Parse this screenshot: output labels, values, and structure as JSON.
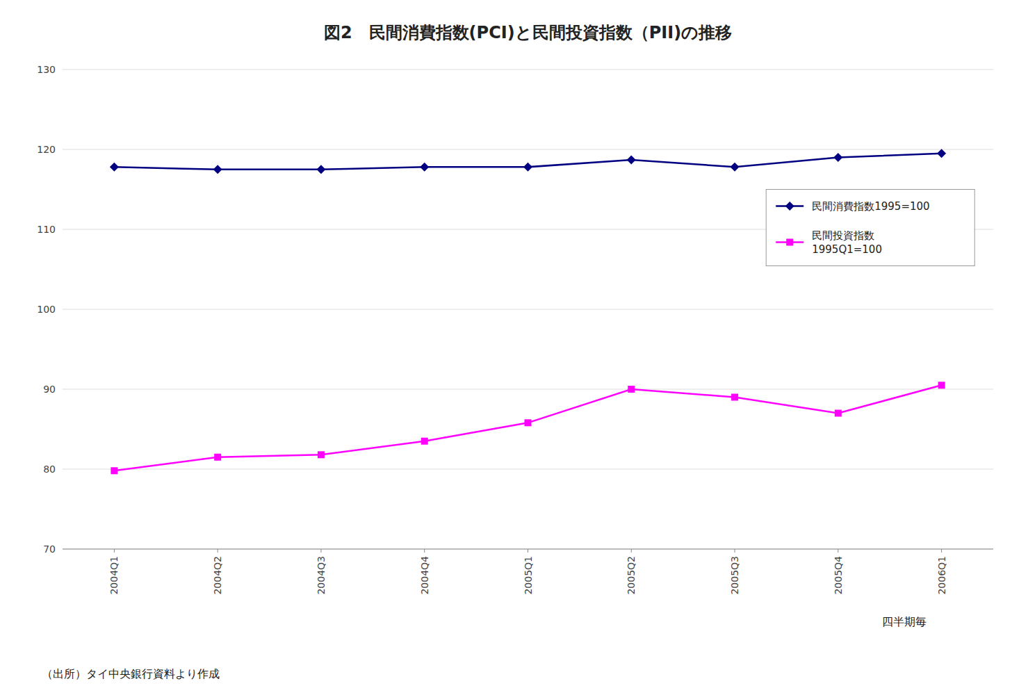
{
  "chart_data": {
    "type": "line",
    "title": "図2　民間消費指数(PCI)と民間投資指数（PII)の推移",
    "categories": [
      "2004Q1",
      "2004Q2",
      "2004Q3",
      "2004Q4",
      "2005Q1",
      "2005Q2",
      "2005Q3",
      "2005Q4",
      "2006Q1"
    ],
    "series": [
      {
        "name": "民間消費指数1995=100",
        "color": "#000080",
        "marker": "diamond",
        "values": [
          117.8,
          117.5,
          117.5,
          117.8,
          117.8,
          118.7,
          117.8,
          119.0,
          119.5
        ]
      },
      {
        "name": "民間投資指数\n1995Q1=100",
        "color": "#FF00FF",
        "marker": "square",
        "values": [
          79.8,
          81.5,
          81.8,
          83.5,
          85.8,
          90.0,
          89.0,
          87.0,
          90.5
        ]
      }
    ],
    "ylim": [
      70,
      130
    ],
    "yticks": [
      70,
      80,
      90,
      100,
      110,
      120,
      130
    ],
    "grid": true,
    "legend": "upper right",
    "xlabel": "四半期毎",
    "footnote": "（出所）タイ中央銀行資料より作成"
  }
}
